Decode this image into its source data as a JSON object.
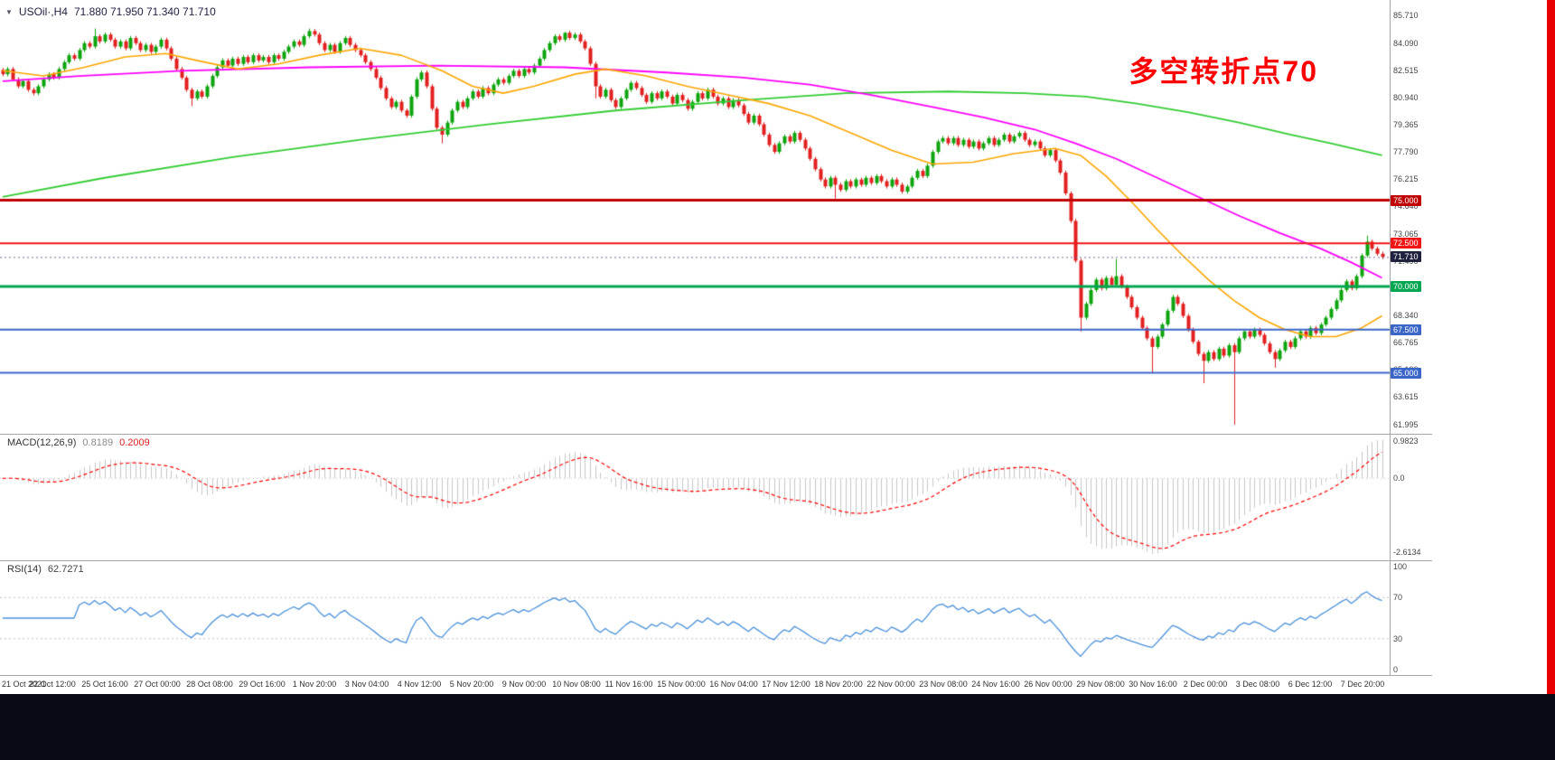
{
  "header": {
    "collapse_icon": "▼",
    "symbol": "USOil·,H4",
    "ohlc": "71.880 71.950 71.340 71.710"
  },
  "annotation": {
    "text": "多空转折点70",
    "color": "#FF0000"
  },
  "colors": {
    "candle_up": "#0DA50D",
    "candle_down": "#E22020",
    "ma_green": "#33CC33",
    "ma_magenta": "#FF00FF",
    "ma_orange": "#FFA500",
    "macd_bar": "#C6C6C6",
    "macd_signal": "#FF0000",
    "rsi_line": "#4A90D9",
    "grid": "#A6A6A6"
  },
  "chart_data": {
    "type": "candlestick",
    "symbol": "USOil",
    "timeframe": "H4",
    "title": "USOil·,H4",
    "open": "71.880",
    "high": "71.950",
    "low": "71.340",
    "close": "71.710",
    "y_range": [
      61.995,
      85.71
    ],
    "y_axis_labels": [
      "85.710",
      "84.090",
      "82.515",
      "80.940",
      "79.365",
      "77.790",
      "76.215",
      "74.640",
      "73.065",
      "71.490",
      "69.915",
      "68.340",
      "66.765",
      "65.190",
      "63.615",
      "61.995"
    ],
    "x_labels": [
      "21 Oct 2021",
      "22 Oct 12:00",
      "25 Oct 16:00",
      "27 Oct 00:00",
      "28 Oct 08:00",
      "29 Oct 16:00",
      "1 Nov 20:00",
      "3 Nov 04:00",
      "4 Nov 12:00",
      "5 Nov 20:00",
      "9 Nov 00:00",
      "10 Nov 08:00",
      "11 Nov 16:00",
      "15 Nov 00:00",
      "16 Nov 04:00",
      "17 Nov 12:00",
      "18 Nov 20:00",
      "22 Nov 00:00",
      "23 Nov 08:00",
      "24 Nov 16:00",
      "26 Nov 00:00",
      "29 Nov 08:00",
      "30 Nov 16:00",
      "2 Dec 00:00",
      "3 Dec 08:00",
      "6 Dec 12:00",
      "7 Dec 20:00"
    ],
    "closes": [
      82.3,
      82.6,
      82.0,
      81.6,
      81.9,
      81.4,
      81.2,
      81.6,
      82.0,
      82.3,
      82.1,
      82.6,
      83.0,
      83.4,
      83.2,
      83.7,
      84.1,
      83.9,
      84.5,
      84.2,
      84.6,
      84.3,
      83.9,
      84.2,
      83.8,
      84.4,
      84.1,
      83.7,
      84.0,
      83.6,
      83.9,
      84.3,
      83.8,
      83.2,
      82.6,
      82.1,
      81.4,
      80.9,
      81.3,
      81.0,
      81.6,
      82.2,
      82.7,
      83.1,
      82.8,
      83.2,
      82.9,
      83.3,
      83.0,
      83.4,
      83.1,
      83.3,
      83.0,
      83.4,
      83.2,
      83.6,
      83.9,
      84.2,
      84.0,
      84.5,
      84.8,
      84.6,
      84.1,
      83.7,
      84.0,
      83.6,
      84.1,
      84.4,
      84.0,
      83.7,
      83.4,
      83.0,
      82.6,
      82.1,
      81.5,
      80.9,
      80.4,
      80.7,
      80.2,
      79.9,
      81.0,
      82.0,
      82.4,
      81.6,
      80.3,
      79.2,
      78.8,
      79.5,
      80.2,
      80.7,
      80.4,
      80.9,
      81.3,
      81.0,
      81.5,
      81.2,
      81.7,
      82.0,
      81.8,
      82.2,
      82.5,
      82.2,
      82.6,
      82.4,
      82.8,
      83.2,
      83.7,
      84.1,
      84.5,
      84.3,
      84.7,
      84.4,
      84.6,
      84.2,
      83.8,
      82.9,
      81.6,
      81.0,
      81.4,
      80.8,
      80.4,
      80.9,
      81.4,
      81.8,
      81.5,
      81.1,
      80.7,
      81.2,
      80.9,
      81.3,
      81.0,
      80.6,
      81.1,
      80.8,
      80.3,
      80.7,
      81.2,
      80.9,
      81.4,
      81.0,
      80.6,
      80.9,
      80.4,
      80.8,
      80.5,
      80.0,
      79.5,
      79.9,
      79.4,
      78.8,
      78.2,
      77.8,
      78.3,
      78.7,
      78.4,
      78.9,
      78.5,
      78.0,
      77.4,
      76.8,
      76.2,
      75.8,
      76.3,
      75.9,
      75.6,
      76.1,
      75.8,
      76.2,
      75.9,
      76.3,
      76.0,
      76.4,
      76.1,
      75.8,
      76.2,
      75.9,
      75.5,
      75.8,
      76.3,
      76.7,
      76.4,
      77.0,
      77.8,
      78.4,
      78.6,
      78.3,
      78.6,
      78.2,
      78.5,
      78.1,
      78.4,
      78.0,
      78.3,
      78.6,
      78.2,
      78.5,
      78.8,
      78.4,
      78.7,
      78.9,
      78.5,
      78.2,
      78.4,
      78.0,
      77.6,
      77.9,
      77.3,
      76.6,
      75.4,
      73.8,
      71.5,
      68.2,
      69.0,
      69.8,
      70.4,
      69.9,
      70.5,
      70.1,
      70.6,
      70.0,
      69.4,
      68.8,
      68.2,
      67.6,
      67.0,
      66.5,
      67.1,
      67.8,
      68.6,
      69.4,
      69.0,
      68.3,
      67.5,
      66.8,
      66.1,
      65.7,
      66.2,
      65.8,
      66.4,
      66.0,
      66.6,
      66.2,
      67.0,
      67.4,
      67.1,
      67.5,
      67.2,
      66.7,
      66.2,
      65.8,
      66.3,
      66.8,
      66.5,
      67.0,
      67.4,
      67.1,
      67.6,
      67.3,
      67.8,
      68.2,
      68.7,
      69.2,
      69.8,
      70.3,
      69.9,
      70.6,
      71.8,
      72.6,
      72.2,
      71.9,
      71.71
    ],
    "wick_overrides": [
      {
        "i": 18,
        "h": 84.95
      },
      {
        "i": 37,
        "l": 80.45
      },
      {
        "i": 60,
        "h": 84.95
      },
      {
        "i": 86,
        "l": 78.3
      },
      {
        "i": 110,
        "h": 84.75
      },
      {
        "i": 116,
        "l": 80.9
      },
      {
        "i": 163,
        "l": 75.1
      },
      {
        "i": 211,
        "l": 67.4
      },
      {
        "i": 218,
        "h": 71.6
      },
      {
        "i": 225,
        "l": 65.0
      },
      {
        "i": 235,
        "l": 64.4
      },
      {
        "i": 241,
        "l": 62.0
      },
      {
        "i": 249,
        "l": 65.3
      },
      {
        "i": 267,
        "h": 72.95
      }
    ],
    "ma_green_points": [
      [
        0,
        75.2
      ],
      [
        20,
        76.3
      ],
      [
        45,
        77.5
      ],
      [
        70,
        78.5
      ],
      [
        95,
        79.4
      ],
      [
        120,
        80.2
      ],
      [
        145,
        80.8
      ],
      [
        165,
        81.2
      ],
      [
        185,
        81.3
      ],
      [
        200,
        81.2
      ],
      [
        212,
        81.0
      ],
      [
        222,
        80.6
      ],
      [
        232,
        80.1
      ],
      [
        242,
        79.5
      ],
      [
        252,
        78.8
      ],
      [
        260,
        78.3
      ],
      [
        270,
        77.6
      ]
    ],
    "ma_magenta_points": [
      [
        0,
        81.9
      ],
      [
        15,
        82.2
      ],
      [
        35,
        82.5
      ],
      [
        60,
        82.7
      ],
      [
        85,
        82.8
      ],
      [
        110,
        82.7
      ],
      [
        130,
        82.4
      ],
      [
        145,
        82.1
      ],
      [
        158,
        81.7
      ],
      [
        170,
        81.1
      ],
      [
        182,
        80.4
      ],
      [
        192,
        79.8
      ],
      [
        202,
        79.1
      ],
      [
        210,
        78.3
      ],
      [
        218,
        77.4
      ],
      [
        226,
        76.3
      ],
      [
        234,
        75.2
      ],
      [
        242,
        74.1
      ],
      [
        250,
        73.1
      ],
      [
        258,
        72.2
      ],
      [
        264,
        71.4
      ],
      [
        270,
        70.5
      ]
    ],
    "ma_orange_points": [
      [
        0,
        82.5
      ],
      [
        8,
        82.2
      ],
      [
        16,
        82.7
      ],
      [
        24,
        83.3
      ],
      [
        32,
        83.5
      ],
      [
        38,
        83.1
      ],
      [
        46,
        82.6
      ],
      [
        54,
        82.9
      ],
      [
        62,
        83.4
      ],
      [
        70,
        83.8
      ],
      [
        78,
        83.4
      ],
      [
        86,
        82.5
      ],
      [
        92,
        81.6
      ],
      [
        98,
        81.2
      ],
      [
        104,
        81.6
      ],
      [
        112,
        82.3
      ],
      [
        118,
        82.6
      ],
      [
        126,
        82.2
      ],
      [
        134,
        81.6
      ],
      [
        142,
        81.1
      ],
      [
        150,
        80.6
      ],
      [
        158,
        79.9
      ],
      [
        166,
        78.9
      ],
      [
        174,
        77.9
      ],
      [
        182,
        77.1
      ],
      [
        190,
        77.2
      ],
      [
        198,
        77.7
      ],
      [
        206,
        78.0
      ],
      [
        211,
        77.6
      ],
      [
        216,
        76.4
      ],
      [
        221,
        74.9
      ],
      [
        226,
        73.3
      ],
      [
        231,
        71.8
      ],
      [
        236,
        70.4
      ],
      [
        241,
        69.2
      ],
      [
        246,
        68.2
      ],
      [
        251,
        67.5
      ],
      [
        256,
        67.1
      ],
      [
        261,
        67.1
      ],
      [
        266,
        67.6
      ],
      [
        270,
        68.3
      ]
    ],
    "levels": [
      {
        "price": 75.0,
        "label": "75.000",
        "color": "#C00000",
        "width": 3
      },
      {
        "price": 72.5,
        "label": "72.500",
        "color": "#F01616",
        "width": 2
      },
      {
        "price": 70.0,
        "label": "70.000",
        "color": "#00A651",
        "width": 3
      },
      {
        "price": 67.5,
        "label": "67.500",
        "color": "#3A66C8",
        "width": 2
      },
      {
        "price": 65.0,
        "label": "65.000",
        "color": "#3A66C8",
        "width": 2
      }
    ],
    "current_price": {
      "value": 71.71,
      "label": "71.710",
      "line_color": "#6A6A8E",
      "badge_color": "#20203F"
    },
    "macd": {
      "label": "MACD(12,26,9)",
      "value_main": "0.8189",
      "value_signal": "0.2009",
      "fast": 12,
      "slow": 26,
      "signal_period": 9,
      "axis_labels": [
        "0.9823",
        "0.0",
        "-2.6134"
      ]
    },
    "rsi": {
      "label": "RSI(14)",
      "value": "62.7271",
      "period": 14,
      "axis_labels": [
        "100",
        "70",
        "30",
        "0"
      ],
      "axis_values": [
        100,
        70,
        30,
        0
      ],
      "levels": [
        70,
        30
      ]
    }
  }
}
